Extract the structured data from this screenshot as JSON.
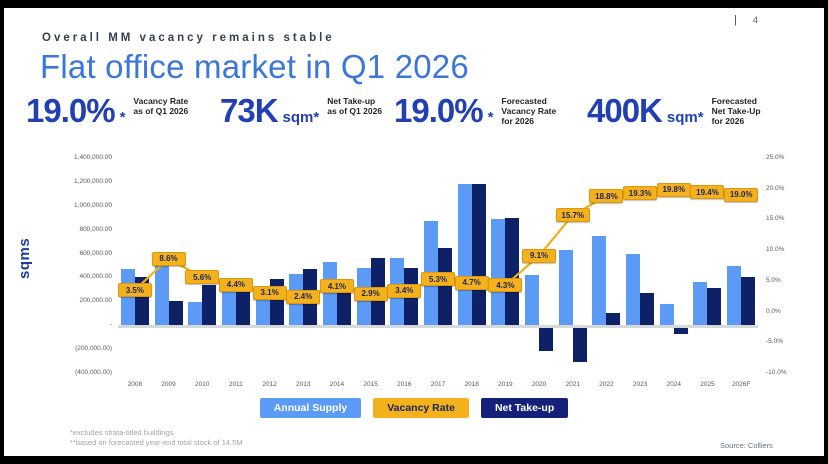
{
  "frame": {
    "page_divider": "|",
    "page_number": "4"
  },
  "header": {
    "kicker": "Overall MM vacancy remains stable",
    "title": "Flat office market in Q1 2026"
  },
  "stats": [
    {
      "value": "19.0%",
      "unit": "*",
      "label": "Vacancy Rate as of Q1 2026"
    },
    {
      "value": "73K",
      "unit": "sqm*",
      "label": "Net Take-up as of Q1 2026"
    },
    {
      "value": "19.0%",
      "unit": "*",
      "label": "Forecasted Vacancy Rate for 2026"
    },
    {
      "value": "400K",
      "unit": "sqm*",
      "label": "Forecasted Net Take-Up for 2026"
    }
  ],
  "chart_data": {
    "type": "combo bar + line",
    "categories": [
      "2008",
      "2009",
      "2010",
      "2011",
      "2012",
      "2013",
      "2014",
      "2015",
      "2016",
      "2017",
      "2018",
      "2019",
      "2020",
      "2021",
      "2022",
      "2023",
      "2024",
      "2025",
      "2026F"
    ],
    "series": [
      {
        "name": "Annual Supply",
        "type": "bar",
        "axis": "left",
        "color": "#5B9BF5",
        "values": [
          470000,
          530000,
          195000,
          310000,
          260000,
          430000,
          530000,
          480000,
          560000,
          870000,
          1180000,
          890000,
          420000,
          630000,
          750000,
          600000,
          180000,
          360000,
          500000
        ]
      },
      {
        "name": "Net Take-up",
        "type": "bar",
        "axis": "left",
        "color": "#0E2167",
        "values": [
          400000,
          200000,
          340000,
          330000,
          390000,
          470000,
          380000,
          560000,
          480000,
          650000,
          1180000,
          900000,
          -190000,
          -280000,
          100000,
          270000,
          -50000,
          310000,
          400000
        ]
      },
      {
        "name": "Vacancy Rate",
        "type": "line",
        "axis": "right",
        "color": "#F0AE1B",
        "label_bg": "#F5B11B",
        "label_fg": "#17255A",
        "label_border": "#D9980F",
        "values": [
          3.5,
          8.6,
          5.6,
          4.4,
          3.1,
          2.4,
          4.1,
          2.9,
          3.4,
          5.3,
          4.7,
          4.3,
          9.1,
          15.7,
          18.8,
          19.3,
          19.8,
          19.4,
          19.0
        ],
        "labels": [
          "3.5%",
          "8.6%",
          "5.6%",
          "4.4%",
          "3.1%",
          "2.4%",
          "4.1%",
          "2.9%",
          "3.4%",
          "5.3%",
          "4.7%",
          "4.3%",
          "9.1%",
          "15.7%",
          "18.8%",
          "19.3%",
          "19.8%",
          "19.4%",
          "19.0%"
        ]
      }
    ],
    "left_axis": {
      "title": "sqms",
      "max": 1400000,
      "min": -400000,
      "ticks": [
        {
          "label": "1,400,000.00",
          "value": 1400000
        },
        {
          "label": "1,200,000.00",
          "value": 1200000
        },
        {
          "label": "1,000,000.00",
          "value": 1000000
        },
        {
          "label": "800,000.00",
          "value": 800000
        },
        {
          "label": "600,000.00",
          "value": 600000
        },
        {
          "label": "400,000.00",
          "value": 400000
        },
        {
          "label": "200,000.00",
          "value": 200000
        },
        {
          "label": "-",
          "value": 0
        },
        {
          "label": "(200,000.00)",
          "value": -200000
        },
        {
          "label": "(400,000.00)",
          "value": -400000
        }
      ]
    },
    "right_axis": {
      "max": 25,
      "min": -10,
      "ticks": [
        {
          "label": "25.0%",
          "value": 25
        },
        {
          "label": "20.0%",
          "value": 20
        },
        {
          "label": "15.0%",
          "value": 15
        },
        {
          "label": "10.0%",
          "value": 10
        },
        {
          "label": "5.0%",
          "value": 5
        },
        {
          "label": "0.0%",
          "value": 0
        },
        {
          "label": "-5.0%",
          "value": -5
        },
        {
          "label": "-10.0%",
          "value": -10
        }
      ]
    },
    "legend": [
      {
        "label": "Annual Supply",
        "bg": "#5B9BF5",
        "fg": "#FFFFFF"
      },
      {
        "label": "Vacancy Rate",
        "bg": "#F3B11B",
        "fg": "#17255A"
      },
      {
        "label": "Net Take-up",
        "bg": "#13217A",
        "fg": "#FFFFFF"
      }
    ],
    "grid": "off",
    "legend_position": "bottom-center"
  },
  "footnotes": [
    "*excludes strata-titled buildings",
    "**based on forecasted year-end total stock of 14.5M"
  ],
  "source": "Source: Colliers"
}
